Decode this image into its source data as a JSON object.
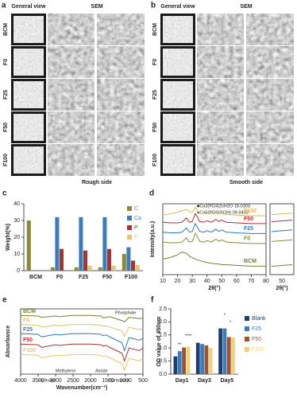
{
  "panel_a": {
    "label": "a",
    "headers": [
      "General view",
      "SEM"
    ],
    "rows": [
      "BCM",
      "F0",
      "F25",
      "F50",
      "F100"
    ],
    "caption": "Rough side"
  },
  "panel_b": {
    "label": "b",
    "headers": [
      "General view",
      "SEM"
    ],
    "rows": [
      "BCM",
      "F0",
      "F25",
      "F50",
      "F100"
    ],
    "caption": "Smooth side"
  },
  "chart_data": [
    {
      "type": "bar",
      "label": "c",
      "ylabel": "Weight(%)",
      "categories": [
        "BCM",
        "F0",
        "F25",
        "F50",
        "F100"
      ],
      "ylim": [
        0,
        40
      ],
      "yticks": [
        0,
        10,
        20,
        30,
        40
      ],
      "series": [
        {
          "name": "C",
          "color": "#8a8a3a",
          "values": [
            30,
            2,
            2,
            2,
            10
          ]
        },
        {
          "name": "Ca",
          "color": "#3a7dbf",
          "values": [
            0,
            32,
            32,
            32,
            14
          ]
        },
        {
          "name": "P",
          "color": "#a83232",
          "values": [
            0,
            13,
            12,
            13,
            6
          ]
        },
        {
          "name": "F",
          "color": "#e8c56a",
          "values": [
            0,
            0,
            3,
            3,
            3.5
          ]
        }
      ]
    },
    {
      "type": "line",
      "label": "d",
      "ylabel": "Intensity(a.u.)",
      "xlabel": "2θ(°)",
      "xlim": [
        10,
        80
      ],
      "xticks": [
        10,
        20,
        30,
        40,
        50,
        60,
        70,
        80
      ],
      "ylim": [
        0,
        100
      ],
      "annotations": [
        "■Ca3(PO4)2xH2O 18-0303",
        "●Ca5(PO4)3(OH) 09-0432"
      ],
      "inset": {
        "xticks": [
          50
        ],
        "xlabel": "2θ(°)"
      },
      "x": [
        10,
        15,
        20,
        23,
        26,
        28,
        30,
        32,
        33,
        35,
        38,
        40,
        43,
        46,
        48,
        50,
        53,
        60,
        70,
        80
      ],
      "series": [
        {
          "name": "F100",
          "color": "#d9b85a",
          "values": [
            84,
            86,
            88,
            90,
            92,
            89,
            88,
            95,
            92,
            87,
            86,
            88,
            86,
            89,
            86,
            87,
            85,
            84,
            83,
            83
          ]
        },
        {
          "name": "F50",
          "color": "#b03030",
          "values": [
            74,
            73,
            73,
            74,
            80,
            74,
            75,
            86,
            83,
            75,
            74,
            76,
            74,
            78,
            75,
            77,
            74,
            73,
            72,
            72
          ]
        },
        {
          "name": "F25",
          "color": "#2f79b5",
          "values": [
            60,
            59,
            59,
            60,
            66,
            60,
            61,
            72,
            69,
            61,
            60,
            62,
            60,
            64,
            61,
            63,
            60,
            59,
            58,
            58
          ]
        },
        {
          "name": "F0",
          "color": "#8a8a3a",
          "values": [
            46,
            45,
            45,
            46,
            52,
            46,
            47,
            58,
            55,
            47,
            46,
            48,
            46,
            50,
            47,
            49,
            46,
            45,
            44,
            44
          ]
        },
        {
          "name": "BCM",
          "color": "#7b7b3a",
          "values": [
            22,
            24,
            28,
            32,
            30,
            26,
            24,
            22,
            21,
            20,
            18,
            17,
            16,
            15,
            15,
            14,
            14,
            13,
            12,
            12
          ]
        }
      ]
    },
    {
      "type": "line",
      "label": "e",
      "ylabel": "Absorbance",
      "xlabel": "Wavenumber(cm⁻¹)",
      "xlim": [
        4000,
        500
      ],
      "xticks": [
        4000,
        3500,
        3000,
        2500,
        2000,
        1500,
        1000,
        500
      ],
      "ylim": [
        0,
        100
      ],
      "annotations": [
        "Hydroxyl",
        "Methylene",
        "Amide",
        "Carbonate",
        "Phosphate"
      ],
      "x": [
        4000,
        3500,
        3400,
        3000,
        2900,
        2500,
        2000,
        1700,
        1650,
        1550,
        1450,
        1100,
        1030,
        900,
        600,
        500
      ],
      "series": [
        {
          "name": "BCM",
          "color": "#7b7b3a",
          "values": [
            90,
            89,
            87,
            89,
            88,
            90,
            90,
            89,
            86,
            87,
            88,
            82,
            80,
            87,
            85,
            86
          ]
        },
        {
          "name": "F0",
          "color": "#d9c46a",
          "values": [
            76,
            75,
            72,
            75,
            74,
            76,
            76,
            75,
            73,
            74,
            72,
            66,
            58,
            72,
            68,
            70
          ]
        },
        {
          "name": "F25",
          "color": "#2f79b5",
          "values": [
            62,
            61,
            57,
            61,
            60,
            62,
            62,
            61,
            59,
            60,
            57,
            48,
            36,
            56,
            52,
            55
          ]
        },
        {
          "name": "F50",
          "color": "#b03030",
          "values": [
            46,
            45,
            41,
            45,
            44,
            46,
            46,
            45,
            43,
            44,
            41,
            32,
            20,
            40,
            36,
            40
          ]
        },
        {
          "name": "F100",
          "color": "#e8c56a",
          "values": [
            30,
            29,
            25,
            29,
            28,
            30,
            30,
            29,
            27,
            28,
            25,
            16,
            6,
            24,
            20,
            24
          ]
        }
      ]
    },
    {
      "type": "bar",
      "label": "f",
      "ylabel": "OD value of 450nm",
      "categories": [
        "Day1",
        "Day3",
        "Day5"
      ],
      "ylim": [
        0,
        2.5
      ],
      "yticks": [
        {
          "value": 0,
          "label": "0.0"
        },
        {
          "value": 0.5,
          "label": "0.5"
        },
        {
          "value": 1,
          "label": "1.0"
        },
        {
          "value": 1.5,
          "label": "1.5"
        },
        {
          "value": 2,
          "label": "2.0"
        },
        {
          "value": 2.5,
          "label": "2.5"
        }
      ],
      "annotations": [
        "****",
        "**",
        "*",
        "*"
      ],
      "series": [
        {
          "name": "Blank",
          "color": "#1f3d6b",
          "values": [
            0.68,
            1.2,
            1.75
          ]
        },
        {
          "name": "F25",
          "color": "#3a7dbf",
          "values": [
            0.88,
            1.15,
            1.75
          ]
        },
        {
          "name": "F50",
          "color": "#a0522d",
          "values": [
            1.02,
            1.1,
            1.42
          ]
        },
        {
          "name": "F100",
          "color": "#f0d27a",
          "values": [
            1.05,
            1.0,
            1.4
          ]
        }
      ]
    }
  ]
}
